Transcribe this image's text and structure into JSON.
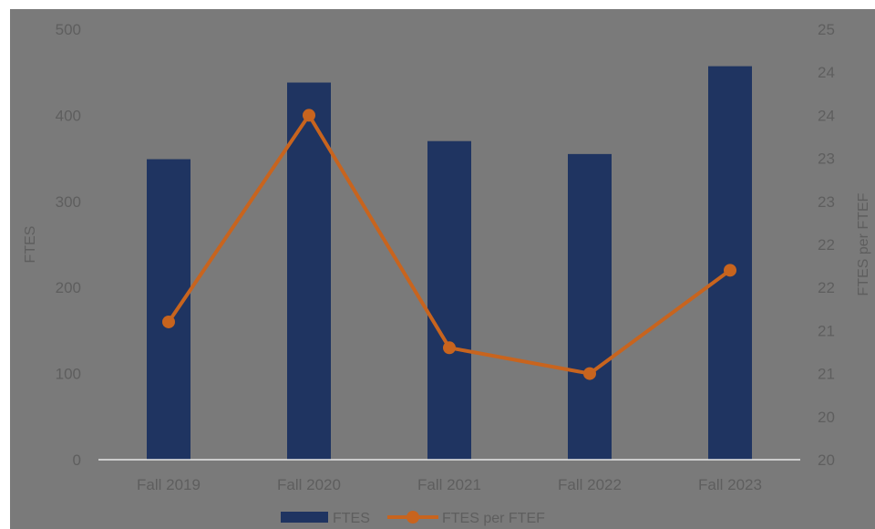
{
  "chart_data": {
    "type": "bar+line",
    "categories": [
      "Fall 2019",
      "Fall 2020",
      "Fall 2021",
      "Fall 2022",
      "Fall 2023"
    ],
    "series": [
      {
        "name": "FTES",
        "type": "bar",
        "axis": "left",
        "color": "#1f3461",
        "values": [
          349,
          438,
          370,
          355,
          457
        ]
      },
      {
        "name": "FTES per FTEF",
        "type": "line",
        "axis": "right",
        "color": "#c8641e",
        "values": [
          21.6,
          24.0,
          21.3,
          21.0,
          22.2
        ]
      }
    ],
    "y_left": {
      "label": "FTES",
      "min": 0,
      "max": 500,
      "ticks": [
        "0",
        "100",
        "200",
        "300",
        "400",
        "500"
      ]
    },
    "y_right": {
      "label": "FTES per FTEF",
      "min": 20,
      "max": 25,
      "ticks": [
        "20",
        "20",
        "21",
        "21",
        "22",
        "22",
        "23",
        "23",
        "24",
        "24",
        "25"
      ]
    },
    "legend": {
      "position": "bottom",
      "items": [
        "FTES",
        "FTES per FTEF"
      ]
    },
    "grid": false
  }
}
